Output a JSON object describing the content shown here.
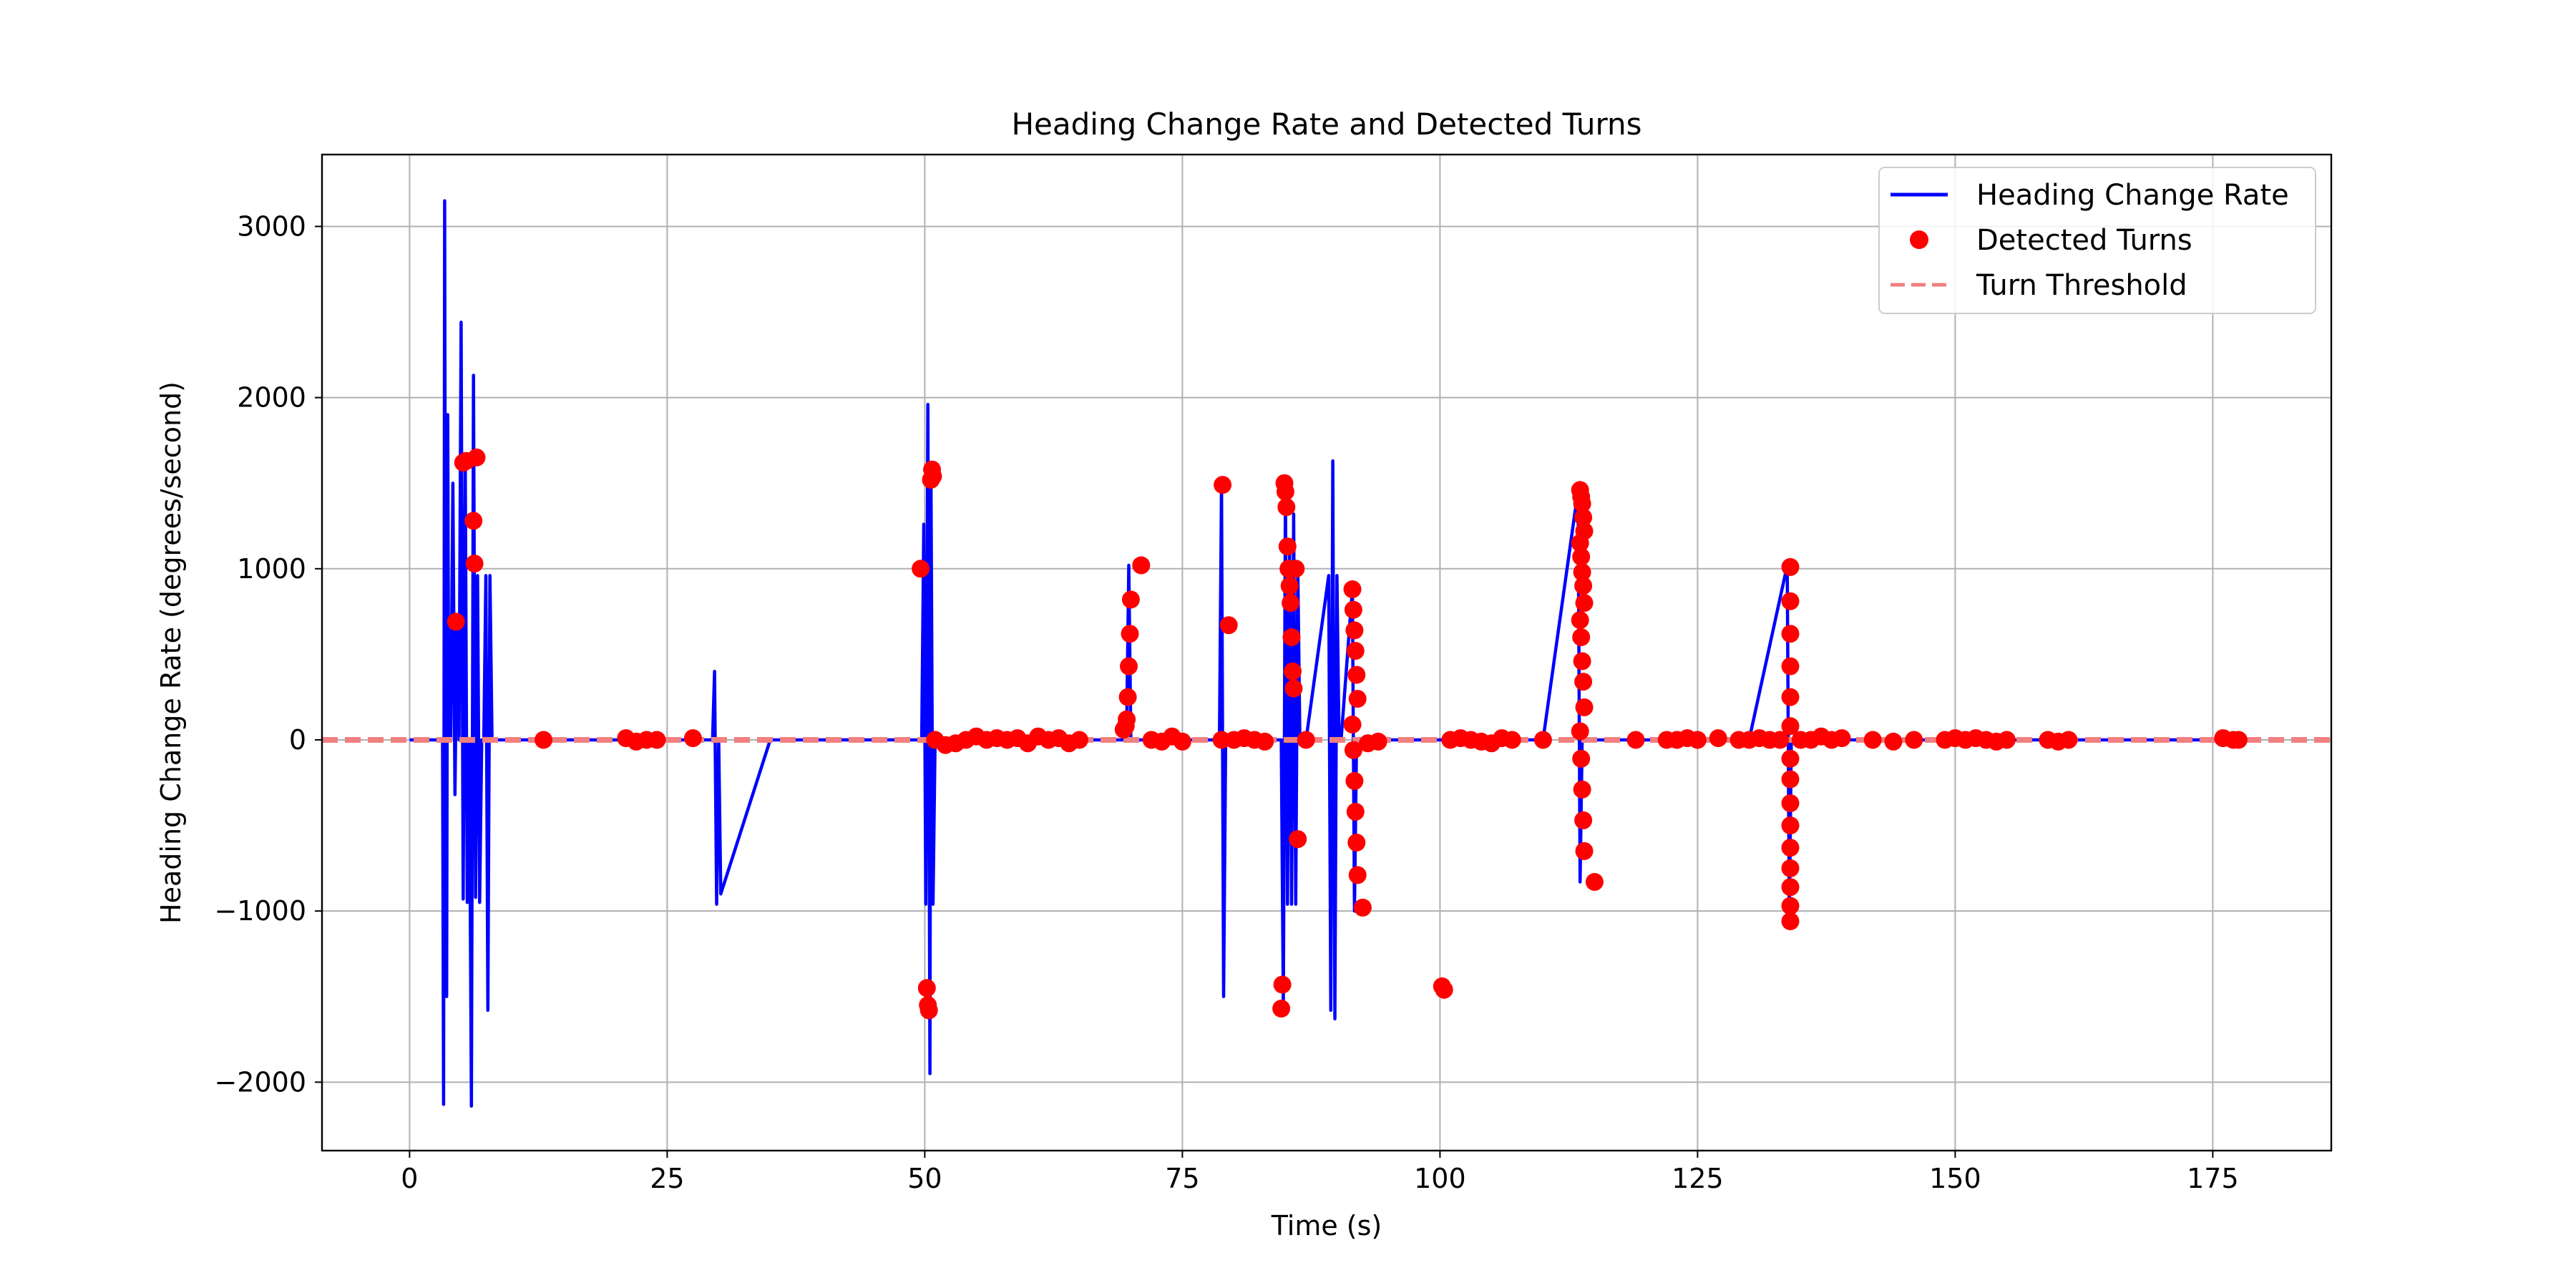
{
  "chart_data": {
    "type": "line",
    "title": "Heading Change Rate and Detected Turns",
    "xlabel": "Time (s)",
    "ylabel": "Heading Change Rate (degrees/second)",
    "xlim": [
      -8.5,
      186.5
    ],
    "ylim": [
      -2400,
      3420
    ],
    "xticks": [
      0,
      25,
      50,
      75,
      100,
      125,
      150,
      175
    ],
    "yticks": [
      -2000,
      -1000,
      0,
      1000,
      2000,
      3000
    ],
    "yticklabels": [
      "−2000",
      "−1000",
      "0",
      "1000",
      "2000",
      "3000"
    ],
    "grid": true,
    "legend_position": "top-right",
    "colors": {
      "heading": "#0000ff",
      "turns": "#ff0000",
      "threshold": "#f08080",
      "grid": "#b0b0b0",
      "axes": "#000000"
    },
    "series": [
      {
        "name": "Heading Change Rate",
        "kind": "line",
        "x": [
          0,
          3.2,
          3.3,
          3.4,
          3.5,
          3.6,
          3.7,
          3.8,
          4.0,
          4.2,
          4.4,
          4.6,
          4.8,
          5.0,
          5.2,
          5.4,
          5.6,
          5.8,
          6.0,
          6.2,
          6.4,
          6.6,
          6.8,
          7.0,
          7.2,
          7.4,
          7.6,
          7.8,
          8.0,
          8.2,
          8.4,
          8.6,
          8.8,
          9.0,
          13,
          21,
          24,
          27.5,
          29.4,
          29.6,
          29.8,
          30.0,
          30.2,
          35,
          45,
          49.7,
          49.9,
          50.1,
          50.3,
          50.5,
          50.6,
          50.8,
          51.0,
          51.2,
          51.4,
          51.6,
          52,
          55,
          60,
          65,
          69.4,
          69.6,
          69.8,
          70.0,
          70.2,
          75,
          78.6,
          78.8,
          79.0,
          79.2,
          82,
          84.6,
          84.8,
          85.0,
          85.2,
          85.4,
          85.6,
          85.8,
          86.0,
          86.2,
          86.4,
          86.6,
          87,
          89.2,
          89.4,
          89.6,
          89.8,
          90.0,
          90.2,
          90.4,
          91.5,
          91.7,
          91.9,
          92.1,
          92.3,
          93,
          96,
          100,
          105,
          110,
          113.4,
          113.6,
          113.8,
          114.0,
          114.2,
          115,
          120,
          125,
          130,
          133.7,
          133.9,
          134.1,
          134.3,
          134.5,
          140,
          150,
          160,
          170,
          176,
          177.5
        ],
        "values": [
          0,
          0,
          -2130,
          3150,
          0,
          -1500,
          1900,
          0,
          0,
          1500,
          -320,
          700,
          0,
          2440,
          -930,
          1620,
          -950,
          0,
          -2140,
          2130,
          -920,
          960,
          -950,
          0,
          0,
          960,
          -1580,
          960,
          0,
          0,
          0,
          0,
          0,
          0,
          0,
          0,
          0,
          0,
          0,
          400,
          -960,
          0,
          -900,
          0,
          0,
          0,
          1260,
          -960,
          1960,
          -1950,
          1580,
          -960,
          0,
          -30,
          0,
          10,
          0,
          0,
          0,
          0,
          0,
          100,
          1020,
          0,
          0,
          0,
          0,
          1500,
          -1500,
          0,
          0,
          0,
          -1570,
          1500,
          -960,
          1100,
          -960,
          1320,
          -960,
          1000,
          0,
          0,
          0,
          960,
          -1580,
          1630,
          -1630,
          960,
          0,
          0,
          880,
          -1000,
          0,
          0,
          0,
          0,
          0,
          0,
          0,
          0,
          1460,
          -830,
          0,
          0,
          0,
          0,
          0,
          0,
          0,
          1020,
          -1060,
          0,
          0,
          0,
          0,
          0,
          0,
          0,
          0,
          0
        ]
      },
      {
        "name": "Detected Turns",
        "kind": "scatter",
        "x": [
          5.2,
          5.5,
          6.2,
          6.3,
          6.5,
          4.5,
          13,
          21,
          22,
          23,
          24,
          27.5,
          49.6,
          50.2,
          50.3,
          50.4,
          50.6,
          50.7,
          50.8,
          51.0,
          52,
          53,
          54,
          55,
          56,
          57,
          58,
          59,
          60,
          61,
          62,
          63,
          64,
          65,
          69.3,
          69.5,
          69.6,
          69.7,
          69.8,
          69.9,
          70.0,
          71,
          72,
          73,
          74,
          75,
          78.8,
          78.9,
          79.5,
          80,
          81,
          82,
          83,
          84.6,
          84.7,
          84.9,
          85.0,
          85.1,
          85.2,
          85.3,
          85.4,
          85.5,
          85.6,
          85.7,
          85.8,
          86.0,
          86.2,
          87,
          91.5,
          91.6,
          91.7,
          91.8,
          91.9,
          92.0,
          91.5,
          91.6,
          91.7,
          91.8,
          91.9,
          92.0,
          92.5,
          93,
          94,
          100.2,
          100.4,
          101,
          102,
          103,
          104,
          105,
          106,
          107,
          110,
          113.6,
          113.7,
          113.8,
          113.9,
          114.0,
          113.6,
          113.7,
          113.8,
          113.9,
          114.0,
          113.6,
          113.7,
          113.8,
          113.9,
          114.0,
          113.6,
          113.7,
          113.8,
          113.9,
          114.0,
          115,
          119,
          122,
          123,
          124,
          125,
          127,
          129,
          130,
          131,
          132,
          133,
          134.0,
          134.0,
          134.0,
          134.0,
          134.0,
          134.0,
          134.0,
          134.0,
          134.0,
          134.0,
          134.0,
          134.0,
          134.0,
          134.0,
          134.0,
          135,
          136,
          137,
          138,
          139,
          142,
          144,
          146,
          149,
          150,
          151,
          152,
          153,
          154,
          155,
          159,
          160,
          161,
          176,
          177,
          177.5
        ],
        "values": [
          1620,
          1630,
          1280,
          1030,
          1650,
          690,
          0,
          10,
          -10,
          0,
          0,
          10,
          1000,
          -1450,
          -1550,
          -1580,
          1520,
          1580,
          1540,
          0,
          -30,
          -20,
          0,
          20,
          0,
          10,
          0,
          10,
          -20,
          20,
          0,
          10,
          -20,
          0,
          60,
          80,
          120,
          250,
          430,
          620,
          820,
          1020,
          0,
          -10,
          20,
          -10,
          0,
          1490,
          670,
          0,
          10,
          0,
          -10,
          -1570,
          -1430,
          1500,
          1450,
          1360,
          1130,
          1000,
          900,
          800,
          600,
          400,
          300,
          1000,
          -580,
          0,
          880,
          760,
          640,
          520,
          380,
          240,
          90,
          -60,
          -240,
          -420,
          -600,
          -790,
          -980,
          -20,
          -10,
          -1440,
          -1460,
          0,
          10,
          0,
          -10,
          -20,
          10,
          0,
          0,
          1460,
          1420,
          1380,
          1300,
          1220,
          1150,
          1070,
          980,
          900,
          800,
          700,
          600,
          460,
          340,
          190,
          50,
          -110,
          -290,
          -470,
          -650,
          -830,
          0,
          0,
          0,
          10,
          0,
          10,
          0,
          0,
          10,
          0,
          0,
          1010,
          810,
          620,
          430,
          250,
          80,
          -110,
          -230,
          -370,
          -500,
          -630,
          -750,
          -860,
          -970,
          -1060,
          0,
          0,
          20,
          0,
          10,
          0,
          -10,
          0,
          0,
          10,
          0,
          10,
          0,
          -10,
          0,
          0,
          -10,
          0,
          10,
          0,
          0
        ]
      },
      {
        "name": "Turn Threshold",
        "kind": "hline",
        "values": [
          0
        ]
      }
    ]
  }
}
